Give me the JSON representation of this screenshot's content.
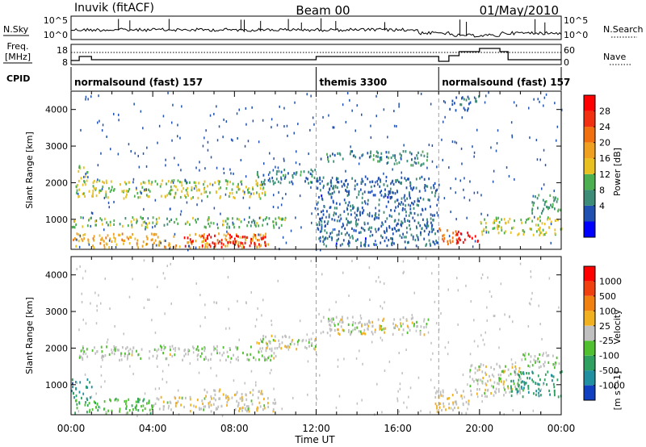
{
  "header": {
    "station": "Inuvik (fitACF)",
    "beam": "Beam 00",
    "date": "01/May/2010"
  },
  "noise_panel": {
    "left_label": "N.Sky",
    "left_ticks": [
      "10^5",
      "10^0"
    ],
    "right_label": "N.Search",
    "right_ticks": [
      "10^5",
      "10^0"
    ]
  },
  "freq_panel": {
    "left_label_line1": "Freq.",
    "left_label_line2": "[MHz]",
    "left_ticks": [
      "18",
      "8"
    ],
    "right_label": "Nave",
    "right_ticks": [
      "60",
      "0"
    ]
  },
  "cpid_panel": {
    "label": "CPID",
    "segments": [
      {
        "name": "normalsound (fast) 157",
        "start_hour": 0,
        "end_hour": 12
      },
      {
        "name": "themis 3300",
        "start_hour": 12,
        "end_hour": 18
      },
      {
        "name": "normalsound (fast) 157",
        "start_hour": 18,
        "end_hour": 24
      }
    ]
  },
  "power_scale": {
    "label": "Power [dB]",
    "ticks": [
      "28",
      "24",
      "20",
      "16",
      "12",
      "8",
      "4"
    ],
    "colors": [
      "#0000ff",
      "#2050b0",
      "#3c8c78",
      "#4caf50",
      "#e8c020",
      "#f0a020",
      "#f07010",
      "#f03010",
      "#ff0000"
    ]
  },
  "velocity_scale": {
    "label": "Velocity",
    "unit": "[m s^-1]",
    "ticks": [
      "1000",
      "500",
      "100",
      "25",
      "-25",
      "-100",
      "-500",
      "-1000"
    ],
    "colors": [
      "#1040c0",
      "#2090a0",
      "#30a060",
      "#50c030",
      "#c0c0c0",
      "#f0b020",
      "#f08010",
      "#f04010",
      "#ff0000"
    ]
  },
  "chart_data": [
    {
      "type": "heatmap",
      "title": "Power",
      "ylabel": "Slant Range [km]",
      "yticks": [
        "1000",
        "2000",
        "3000",
        "4000"
      ],
      "ylim": [
        180,
        4500
      ],
      "xlim": [
        0,
        24
      ],
      "xticks": [
        "00:00",
        "04:00",
        "08:00",
        "12:00",
        "16:00",
        "20:00",
        "00:00"
      ],
      "colorbar": "Power [dB]",
      "clim": [
        0,
        30
      ],
      "scatter_bands": [
        {
          "t0": 0.0,
          "t1": 9.8,
          "r0": 250,
          "r1": 650,
          "level": 18
        },
        {
          "t0": 5.5,
          "t1": 9.5,
          "r0": 250,
          "r1": 620,
          "level": 28
        },
        {
          "t0": 0.0,
          "t1": 10.5,
          "r0": 800,
          "r1": 1100,
          "level": 12
        },
        {
          "t0": 0.2,
          "t1": 9.5,
          "r0": 1600,
          "r1": 2100,
          "level": 14
        },
        {
          "t0": 0.3,
          "t1": 0.8,
          "r0": 2100,
          "r1": 2500,
          "level": 14
        },
        {
          "t0": 9.0,
          "t1": 12.0,
          "r0": 2000,
          "r1": 2400,
          "level": 8
        },
        {
          "t0": 12.2,
          "t1": 15.0,
          "r0": 2600,
          "r1": 2900,
          "level": 8
        },
        {
          "t0": 15.0,
          "t1": 17.6,
          "r0": 2500,
          "r1": 2900,
          "level": 8
        },
        {
          "t0": 18.0,
          "t1": 19.0,
          "r0": 350,
          "r1": 800,
          "level": 22
        },
        {
          "t0": 18.8,
          "t1": 20.0,
          "r0": 400,
          "r1": 700,
          "level": 30
        },
        {
          "t0": 20.0,
          "t1": 24.0,
          "r0": 600,
          "r1": 1100,
          "level": 14
        },
        {
          "t0": 22.5,
          "t1": 24.0,
          "r0": 1200,
          "r1": 1700,
          "level": 10
        },
        {
          "t0": 12.0,
          "t1": 18.0,
          "r0": 300,
          "r1": 2200,
          "level": 6
        },
        {
          "t0": 18.5,
          "t1": 20.0,
          "r0": 4000,
          "r1": 4400,
          "level": 6
        }
      ]
    },
    {
      "type": "heatmap",
      "title": "Velocity",
      "ylabel": "Slant Range [km]",
      "yticks": [
        "1000",
        "2000",
        "3000",
        "4000"
      ],
      "ylim": [
        180,
        4500
      ],
      "xlim": [
        0,
        24
      ],
      "xticks": [
        "00:00",
        "04:00",
        "08:00",
        "12:00",
        "16:00",
        "20:00",
        "00:00"
      ],
      "xlabel": "Time UT",
      "colorbar": "Velocity [m s^-1]",
      "clim": [
        -1000,
        1000
      ],
      "scatter_bands": [
        {
          "t0": 0.0,
          "t1": 4.0,
          "r0": 250,
          "r1": 650,
          "level": -300
        },
        {
          "t0": 0.0,
          "t1": 1.0,
          "r0": 650,
          "r1": 1200,
          "level": -600
        },
        {
          "t0": 4.0,
          "t1": 10.0,
          "r0": 300,
          "r1": 700,
          "level": 40
        },
        {
          "t0": 6.5,
          "t1": 9.5,
          "r0": 650,
          "r1": 900,
          "level": 80
        },
        {
          "t0": 0.3,
          "t1": 10.0,
          "r0": 1700,
          "r1": 2100,
          "level": -60
        },
        {
          "t0": 9.0,
          "t1": 12.0,
          "r0": 2000,
          "r1": 2400,
          "level": 0
        },
        {
          "t0": 12.0,
          "t1": 17.5,
          "r0": 2400,
          "r1": 2900,
          "level": 0
        },
        {
          "t0": 17.8,
          "t1": 19.5,
          "r0": 250,
          "r1": 900,
          "level": 60
        },
        {
          "t0": 19.5,
          "t1": 22.0,
          "r0": 700,
          "r1": 1600,
          "level": 0
        },
        {
          "t0": 21.5,
          "t1": 24.0,
          "r0": 700,
          "r1": 1400,
          "level": -500
        },
        {
          "t0": 22.0,
          "t1": 24.0,
          "r0": 1500,
          "r1": 1900,
          "level": -60
        }
      ]
    }
  ]
}
